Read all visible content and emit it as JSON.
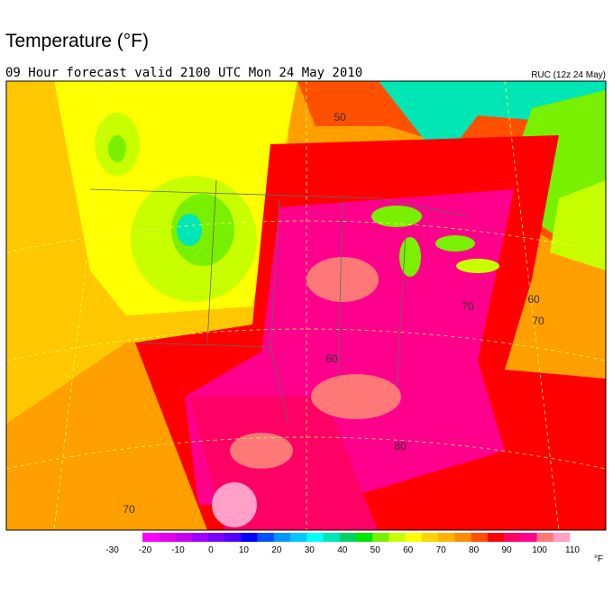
{
  "header": {
    "title": "Temperature (°F)",
    "subtitle": "09 Hour forecast valid 2100 UTC Mon 24 May 2010",
    "model": "RUC (12z 24 May)"
  },
  "map": {
    "contour_labels": [
      "50",
      "60",
      "70",
      "80",
      "70",
      "60",
      "70"
    ]
  },
  "colorbar": {
    "labels": [
      "-30",
      "-20",
      "-10",
      "0",
      "10",
      "20",
      "30",
      "40",
      "50",
      "60",
      "70",
      "80",
      "90",
      "100",
      "110"
    ],
    "unit": "°F",
    "colors": [
      "#ff00ff",
      "#e600e6",
      "#c800f0",
      "#a000ff",
      "#7800ff",
      "#5000ff",
      "#0000ff",
      "#0050ff",
      "#0096ff",
      "#00c8ff",
      "#00ffff",
      "#00e6b4",
      "#00d264",
      "#00e600",
      "#78f000",
      "#c8ff00",
      "#ffff00",
      "#ffd200",
      "#ffb400",
      "#ff8c00",
      "#ff5000",
      "#ff0000",
      "#ff0064",
      "#ff008c",
      "#ff7878",
      "#ffa0c8"
    ]
  }
}
